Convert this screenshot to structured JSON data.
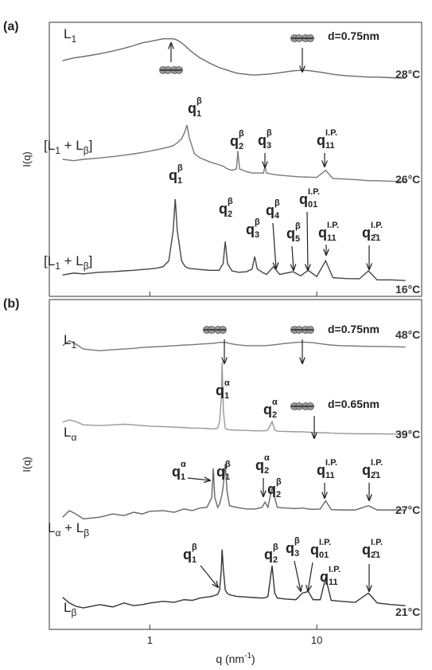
{
  "chart_data": [
    {
      "type": "line",
      "panel_label": "(a)",
      "y_label": "I(q)",
      "xscale": "log",
      "xlim": [
        0.25,
        42.5
      ],
      "ylim": [
        0,
        100
      ],
      "xticks": [
        1,
        10
      ],
      "x": [
        0.3,
        0.35,
        0.4,
        0.5,
        0.6,
        0.7,
        0.8,
        0.9,
        1.0,
        1.1,
        1.2,
        1.3,
        1.38,
        1.42,
        1.46,
        1.55,
        1.62,
        1.67,
        1.72,
        1.85,
        2.0,
        2.3,
        2.6,
        2.75,
        2.83,
        2.92,
        3.1,
        3.3,
        3.37,
        3.45,
        3.8,
        4.1,
        4.25,
        4.4,
        4.8,
        4.9,
        5.0,
        5.5,
        6.0,
        7.2,
        8.0,
        8.9,
        10,
        11.3,
        12.5,
        15,
        18,
        20.4,
        23,
        28,
        34
      ],
      "series": [
        {
          "name": "28°C",
          "phase": [
            "L",
            "1"
          ],
          "color": "#6a6a6a",
          "values": [
            86,
            87,
            87.5,
            88.5,
            89.5,
            90.5,
            91.5,
            92.5,
            93,
            93.5,
            94,
            94,
            94,
            93.8,
            93.5,
            92.5,
            91.5,
            90.8,
            90,
            88.5,
            87,
            85,
            83.5,
            83,
            82.8,
            82.5,
            82,
            81.5,
            81.4,
            81.3,
            81,
            80.8,
            80.8,
            80.8,
            81,
            81,
            81,
            81.3,
            81.6,
            82.3,
            82.5,
            82.4,
            82,
            81.5,
            81,
            80.5,
            80.2,
            80,
            80,
            79.8,
            79.6
          ]
        },
        {
          "name": "26°C",
          "phase": [
            "[L",
            "1",
            " + L",
            "β",
            "]"
          ],
          "color": "#777777",
          "values": [
            50,
            49.5,
            50,
            50.5,
            51,
            51.5,
            52,
            52.5,
            53,
            53.5,
            54,
            54.5,
            55,
            55.5,
            56,
            57.5,
            60,
            62.5,
            58,
            52,
            50.5,
            49,
            48,
            47.5,
            47,
            46.5,
            46,
            46.5,
            53,
            46.5,
            45.5,
            45,
            45,
            45,
            45,
            47.7,
            45,
            44.5,
            44.2,
            43.8,
            43.6,
            43.5,
            43.4,
            46,
            43,
            42.8,
            42.5,
            42.2,
            42.2,
            42,
            41.9
          ]
        },
        {
          "name": "16°C",
          "phase": [
            "[L",
            "1",
            " + L",
            "β",
            "]"
          ],
          "color": "#444444",
          "values": [
            7.8,
            8.5,
            8.2,
            8.8,
            9,
            9.3,
            9.5,
            9.8,
            10,
            10.3,
            10.8,
            13,
            24,
            35.5,
            24,
            13,
            11,
            10.5,
            10.2,
            10,
            9.8,
            9.5,
            9.5,
            12,
            20,
            12,
            9.3,
            9,
            8.8,
            8.8,
            9,
            10,
            14.5,
            10,
            8.5,
            8.3,
            8,
            10.8,
            8,
            9,
            7.5,
            9.5,
            7.2,
            13,
            6.8,
            6.5,
            6.4,
            9.3,
            6,
            6,
            5.8
          ]
        }
      ],
      "annotations": [
        {
          "base": "q",
          "sub": "1",
          "sup": "β"
        },
        {
          "base": "q",
          "sub": "2",
          "sup": "β"
        },
        {
          "base": "q",
          "sub": "3",
          "sup": "β"
        },
        {
          "base": "q",
          "sub": "11",
          "sup": "I.P."
        },
        {
          "base": "q",
          "sub": "1",
          "sup": "β"
        },
        {
          "base": "q",
          "sub": "2",
          "sup": "β"
        },
        {
          "base": "q",
          "sub": "3",
          "sup": "β"
        },
        {
          "base": "q",
          "sub": "4",
          "sup": "β"
        },
        {
          "base": "q",
          "sub": "5",
          "sup": "β"
        },
        {
          "base": "q",
          "sub": "01",
          "sup": "I.P."
        },
        {
          "base": "q",
          "sub": "11",
          "sup": "I.P."
        },
        {
          "base": "q",
          "sub": "2̄1",
          "sup": "I.P."
        }
      ],
      "notes": [
        "d=0.75nm"
      ]
    },
    {
      "type": "line",
      "panel_label": "(b)",
      "y_label": "I(q)",
      "xscale": "log",
      "x_label": [
        "q (nm",
        "-1",
        ")"
      ],
      "xlim": [
        0.25,
        42.5
      ],
      "ylim": [
        0,
        100
      ],
      "xticks": [
        1,
        10
      ],
      "x": [
        0.3,
        0.33,
        0.36,
        0.4,
        0.5,
        0.6,
        0.7,
        0.8,
        0.9,
        1.0,
        1.2,
        1.4,
        1.6,
        1.8,
        2.0,
        2.2,
        2.35,
        2.4,
        2.45,
        2.55,
        2.62,
        2.68,
        2.71,
        2.76,
        2.83,
        2.9,
        3.0,
        3.3,
        3.8,
        4.3,
        4.7,
        4.9,
        5.1,
        5.4,
        5.6,
        5.8,
        6.5,
        7.5,
        8.2,
        8.9,
        9.5,
        10.5,
        11.3,
        12.2,
        14,
        17,
        20.4,
        23,
        28,
        34
      ],
      "series": [
        {
          "name": "48°C",
          "phase": [
            "L",
            "1"
          ],
          "color": "#777777",
          "values": [
            86,
            87.5,
            86.5,
            85,
            84.5,
            84.8,
            85,
            85.2,
            85.5,
            85.6,
            85.8,
            86,
            86.2,
            86.3,
            86.5,
            86.6,
            86.7,
            86.7,
            86.8,
            86.9,
            87,
            87,
            87,
            87,
            87,
            86.9,
            86.7,
            86.3,
            86,
            86,
            86,
            86,
            86.1,
            86.2,
            86.3,
            86.4,
            86.7,
            87,
            87.1,
            87,
            86.9,
            86.6,
            86.4,
            86.2,
            86,
            85.9,
            85.8,
            85.8,
            85.7,
            85.6
          ]
        },
        {
          "name": "39°C",
          "phase": [
            "L",
            "α"
          ],
          "color": "#999999",
          "values": [
            62.8,
            63.5,
            63,
            62,
            61.8,
            62,
            62.2,
            62,
            61.8,
            61.6,
            61.5,
            61.3,
            61.2,
            61,
            61,
            60.9,
            60.8,
            60.8,
            60.8,
            61,
            63,
            70,
            80.9,
            66,
            61,
            60.6,
            60.5,
            60.4,
            60.3,
            60.2,
            60.2,
            60.2,
            60.5,
            63,
            60.4,
            60.1,
            60,
            59.9,
            59.9,
            59.8,
            59.7,
            59.6,
            59.6,
            59.5,
            59.4,
            59.3,
            59.3,
            59.3,
            59.2,
            59.2
          ]
        },
        {
          "name": "27°C",
          "phase": [
            "L",
            "α",
            " + L",
            "β"
          ],
          "color": "#666666",
          "values": [
            34,
            36,
            35,
            33.5,
            34,
            35,
            34.5,
            35.5,
            35,
            35.8,
            36,
            35.5,
            36.5,
            36,
            36.8,
            37,
            40,
            48.8,
            40,
            37,
            38,
            40,
            41,
            44,
            50.2,
            42,
            37.5,
            37,
            36.5,
            36.5,
            37,
            38.6,
            37,
            43,
            40,
            37,
            36.8,
            36.6,
            36.8,
            36.5,
            36.4,
            36.5,
            39,
            36.3,
            36.2,
            36.2,
            37.5,
            36.2,
            36.2,
            36.2
          ]
        },
        {
          "name": "21°C",
          "phase": [
            "L",
            "β"
          ],
          "color": "#333333",
          "values": [
            9.7,
            8,
            7,
            6.5,
            7.5,
            6.8,
            8,
            7.2,
            7.5,
            8,
            8.5,
            8.2,
            9,
            8.8,
            9.5,
            9.8,
            10,
            10.2,
            10.3,
            10.6,
            12,
            18,
            24.2,
            18,
            12,
            11,
            10.5,
            10,
            9.8,
            9.6,
            9.5,
            9.6,
            10,
            19.3,
            11,
            9.5,
            9.2,
            9,
            11,
            11.5,
            9,
            9,
            15.7,
            8.8,
            8.5,
            8.2,
            11,
            8,
            7.5,
            7.2
          ]
        }
      ],
      "annotations": [
        {
          "base": "q",
          "sub": "1",
          "sup": "α"
        },
        {
          "base": "q",
          "sub": "2",
          "sup": "α"
        },
        {
          "base": "q",
          "sub": "1",
          "sup": "α"
        },
        {
          "base": "q",
          "sub": "1",
          "sup": "β"
        },
        {
          "base": "q",
          "sub": "2",
          "sup": "α"
        },
        {
          "base": "q",
          "sub": "2",
          "sup": "β"
        },
        {
          "base": "q",
          "sub": "11",
          "sup": "I.P."
        },
        {
          "base": "q",
          "sub": "2̄1",
          "sup": "I.P."
        },
        {
          "base": "q",
          "sub": "1",
          "sup": "β"
        },
        {
          "base": "q",
          "sub": "2",
          "sup": "β"
        },
        {
          "base": "q",
          "sub": "3",
          "sup": "β"
        },
        {
          "base": "q",
          "sub": "01",
          "sup": "I.P."
        },
        {
          "base": "q",
          "sub": "11",
          "sup": "I.P."
        },
        {
          "base": "q",
          "sub": "2̄1",
          "sup": "I.P."
        }
      ],
      "notes": [
        "d=0.75nm",
        "d=0.65nm"
      ]
    }
  ]
}
